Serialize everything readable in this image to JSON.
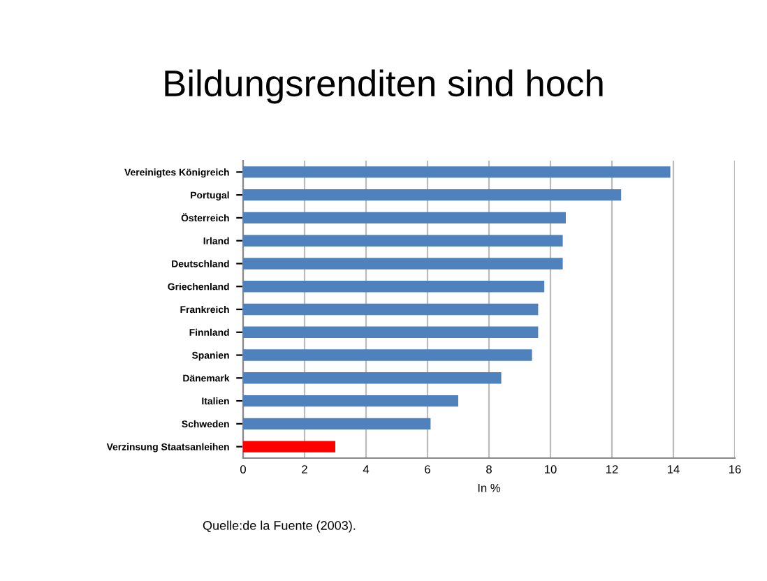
{
  "chart_data": {
    "type": "bar",
    "orientation": "horizontal",
    "title": "Bildungsrenditen sind hoch",
    "xlabel": "In %",
    "categories": [
      "Vereinigtes Königreich",
      "Portugal",
      "Österreich",
      "Irland",
      "Deutschland",
      "Griechenland",
      "Frankreich",
      "Finnland",
      "Spanien",
      "Dänemark",
      "Italien",
      "Schweden",
      "Verzinsung Staatsanleihen"
    ],
    "values": [
      13.9,
      12.3,
      10.5,
      10.4,
      10.4,
      9.8,
      9.6,
      9.6,
      9.4,
      8.4,
      7.0,
      6.1,
      3.0
    ],
    "colors": [
      "#4f81bd",
      "#4f81bd",
      "#4f81bd",
      "#4f81bd",
      "#4f81bd",
      "#4f81bd",
      "#4f81bd",
      "#4f81bd",
      "#4f81bd",
      "#4f81bd",
      "#4f81bd",
      "#4f81bd",
      "#ff0000"
    ],
    "xlim": [
      0,
      16
    ],
    "xticks": [
      0,
      2,
      4,
      6,
      8,
      10,
      12,
      14,
      16
    ],
    "grid": "x",
    "annotations": [
      "Quelle:de la Fuente (2003)."
    ]
  }
}
